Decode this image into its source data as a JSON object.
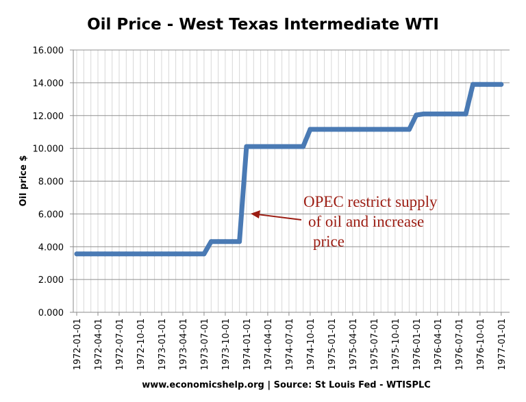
{
  "chart_data": {
    "type": "line",
    "title": "Oil Price - West Texas Intermediate WTI",
    "xlabel": "www.economicshelp.org | Source: St Louis Fed - WTISPLC",
    "ylabel": "Oil price $",
    "ylim": [
      0,
      16
    ],
    "yticks": [
      "0.000",
      "2.000",
      "4.000",
      "6.000",
      "8.000",
      "10.000",
      "12.000",
      "14.000",
      "16.000"
    ],
    "x_tick_labels": [
      "1972-01-01",
      "1972-04-01",
      "1972-07-01",
      "1972-10-01",
      "1973-01-01",
      "1973-04-01",
      "1973-07-01",
      "1973-10-01",
      "1974-01-01",
      "1974-04-01",
      "1974-07-01",
      "1974-10-01",
      "1975-01-01",
      "1975-04-01",
      "1975-07-01",
      "1975-10-01",
      "1976-01-01",
      "1976-04-01",
      "1976-07-01",
      "1976-10-01",
      "1977-01-01"
    ],
    "grid": "vertical monthly lines and horizontal lines at major y ticks",
    "color": "#4a7ab4",
    "series": [
      {
        "x": [
          "1972-01-01",
          "1972-02-01",
          "1972-03-01",
          "1972-04-01",
          "1972-05-01",
          "1972-06-01",
          "1972-07-01",
          "1972-08-01",
          "1972-09-01",
          "1972-10-01",
          "1972-11-01",
          "1972-12-01",
          "1973-01-01",
          "1973-02-01",
          "1973-03-01",
          "1973-04-01",
          "1973-05-01",
          "1973-06-01",
          "1973-07-01",
          "1973-08-01",
          "1973-09-01",
          "1973-10-01",
          "1973-11-01",
          "1973-12-01",
          "1974-01-01",
          "1974-02-01",
          "1974-03-01",
          "1974-04-01",
          "1974-05-01",
          "1974-06-01",
          "1974-07-01",
          "1974-08-01",
          "1974-09-01",
          "1974-10-01",
          "1974-11-01",
          "1974-12-01",
          "1975-01-01",
          "1975-02-01",
          "1975-03-01",
          "1975-04-01",
          "1975-05-01",
          "1975-06-01",
          "1975-07-01",
          "1975-08-01",
          "1975-09-01",
          "1975-10-01",
          "1975-11-01",
          "1975-12-01",
          "1976-01-01",
          "1976-02-01",
          "1976-03-01",
          "1976-04-01",
          "1976-05-01",
          "1976-06-01",
          "1976-07-01",
          "1976-08-01",
          "1976-09-01",
          "1976-10-01",
          "1976-11-01",
          "1976-12-01",
          "1977-01-01"
        ],
        "values": [
          3.56,
          3.56,
          3.56,
          3.56,
          3.56,
          3.56,
          3.56,
          3.56,
          3.56,
          3.56,
          3.56,
          3.56,
          3.56,
          3.56,
          3.56,
          3.56,
          3.56,
          3.56,
          3.56,
          4.31,
          4.31,
          4.31,
          4.31,
          4.31,
          10.11,
          10.11,
          10.11,
          10.11,
          10.11,
          10.11,
          10.11,
          10.11,
          10.11,
          11.16,
          11.16,
          11.16,
          11.16,
          11.16,
          11.16,
          11.16,
          11.16,
          11.16,
          11.16,
          11.16,
          11.16,
          11.16,
          11.16,
          11.16,
          12.03,
          12.1,
          12.1,
          12.1,
          12.1,
          12.1,
          12.1,
          12.1,
          13.9,
          13.9,
          13.9,
          13.9,
          13.9
        ]
      }
    ],
    "annotation": {
      "lines": [
        "OPEC restrict supply",
        "of oil and increase",
        "price"
      ],
      "color": "#9b1c12",
      "points_to": "1974-01-01"
    }
  }
}
